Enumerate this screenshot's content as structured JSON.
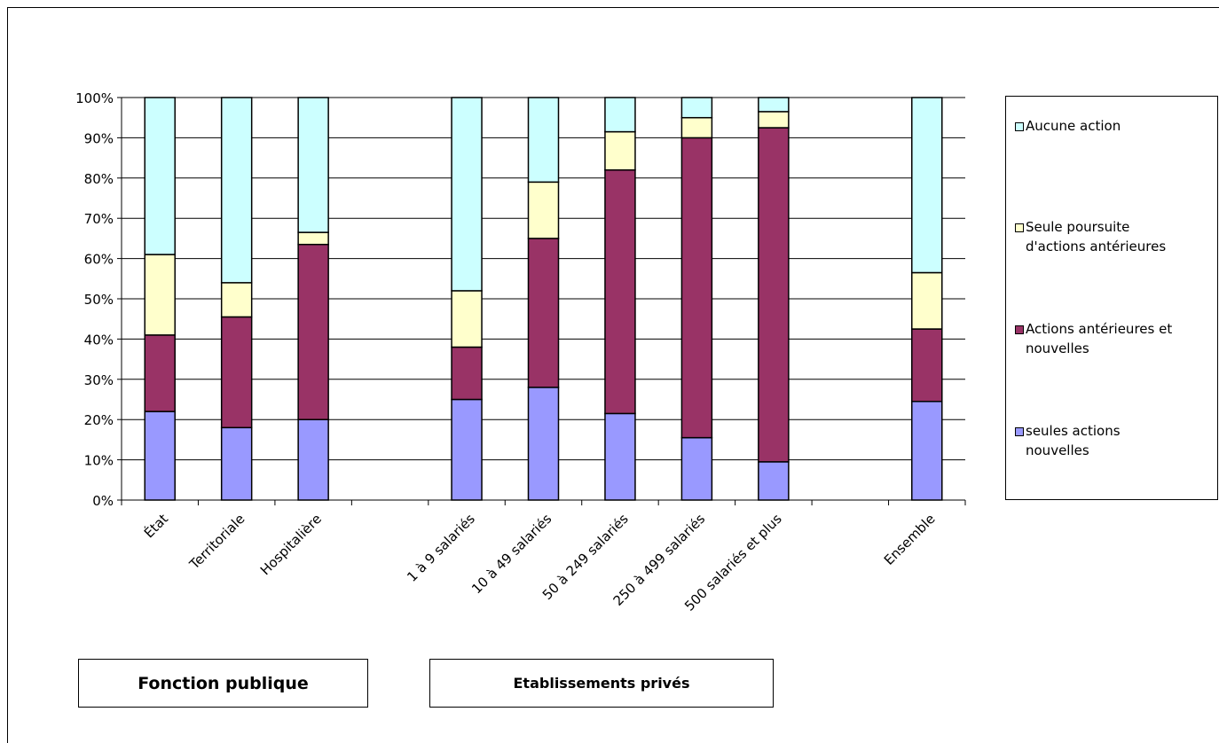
{
  "chart_data": {
    "type": "bar",
    "stacked": true,
    "percent_axis": true,
    "categories": [
      "État",
      "Territoriale",
      "Hospitalière",
      "",
      "1 à 9 salariés",
      "10 à 49 salariés",
      "50 à 249 salariés",
      "250 à 499 salariés",
      "500 salariés et plus",
      "",
      "Ensemble"
    ],
    "series": [
      {
        "name": "seules actions nouvelles",
        "color": "#9999ff",
        "values": [
          22,
          18,
          20,
          null,
          25,
          28,
          21.5,
          15.5,
          9.5,
          null,
          24.5
        ]
      },
      {
        "name": "Actions antérieures et nouvelles",
        "color": "#993366",
        "values": [
          19,
          27.5,
          43.5,
          null,
          13,
          37,
          60.5,
          74.5,
          83,
          null,
          18
        ]
      },
      {
        "name": "Seule poursuite d'actions antérieures",
        "color": "#ffffcc",
        "values": [
          20,
          8.5,
          3,
          null,
          14,
          14,
          9.5,
          5,
          4,
          null,
          14
        ]
      },
      {
        "name": "Aucune action",
        "color": "#ccffff",
        "values": [
          39,
          46,
          33.5,
          null,
          48,
          21,
          8.5,
          5,
          3.5,
          null,
          43.5
        ]
      }
    ],
    "ylim": [
      0,
      100
    ],
    "yticks": [
      "0%",
      "10%",
      "20%",
      "30%",
      "40%",
      "50%",
      "60%",
      "70%",
      "80%",
      "90%",
      "100%"
    ],
    "grid": true,
    "legend_position": "right"
  },
  "legend": {
    "items": [
      {
        "label": "Aucune action",
        "color": "#ccffff"
      },
      {
        "label": "Seule poursuite d'actions antérieures",
        "color": "#ffffcc"
      },
      {
        "label": "Actions antérieures et nouvelles",
        "color": "#993366"
      },
      {
        "label": "seules actions nouvelles",
        "color": "#9999ff"
      }
    ]
  },
  "groups": {
    "public_label": "Fonction publique",
    "private_label": "Etablissements privés"
  }
}
